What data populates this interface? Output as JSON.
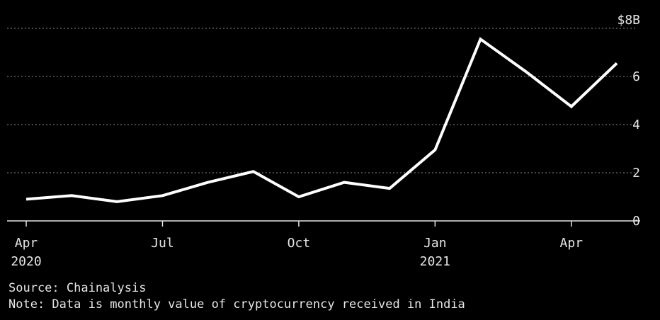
{
  "chart_data": {
    "type": "line",
    "title": "",
    "xlabel": "",
    "ylabel": "",
    "y_unit_label": "$8B",
    "ylim": [
      0,
      8
    ],
    "yticks": [
      {
        "value": 8,
        "label": "$8B"
      },
      {
        "value": 6,
        "label": "6"
      },
      {
        "value": 4,
        "label": "4"
      },
      {
        "value": 2,
        "label": "2"
      },
      {
        "value": 0,
        "label": "0"
      }
    ],
    "x": [
      "2020-04",
      "2020-05",
      "2020-06",
      "2020-07",
      "2020-08",
      "2020-09",
      "2020-10",
      "2020-11",
      "2020-12",
      "2021-01",
      "2021-02",
      "2021-03",
      "2021-04",
      "2021-05"
    ],
    "xticks": [
      {
        "x": "2020-04",
        "label": "Apr",
        "year": "2020"
      },
      {
        "x": "2020-07",
        "label": "Jul",
        "year": ""
      },
      {
        "x": "2020-10",
        "label": "Oct",
        "year": ""
      },
      {
        "x": "2021-01",
        "label": "Jan",
        "year": "2021"
      },
      {
        "x": "2021-04",
        "label": "Apr",
        "year": ""
      }
    ],
    "series": [
      {
        "values": [
          0.9,
          1.05,
          0.8,
          1.05,
          1.6,
          2.05,
          1.0,
          1.6,
          1.35,
          2.95,
          7.55,
          6.2,
          4.75,
          6.55
        ],
        "color": "#ffffff"
      }
    ],
    "grid": true,
    "legend": "none"
  },
  "footer": {
    "source": "Source: Chainalysis",
    "note": "Note: Data is monthly value of cryptocurrency received in India"
  }
}
